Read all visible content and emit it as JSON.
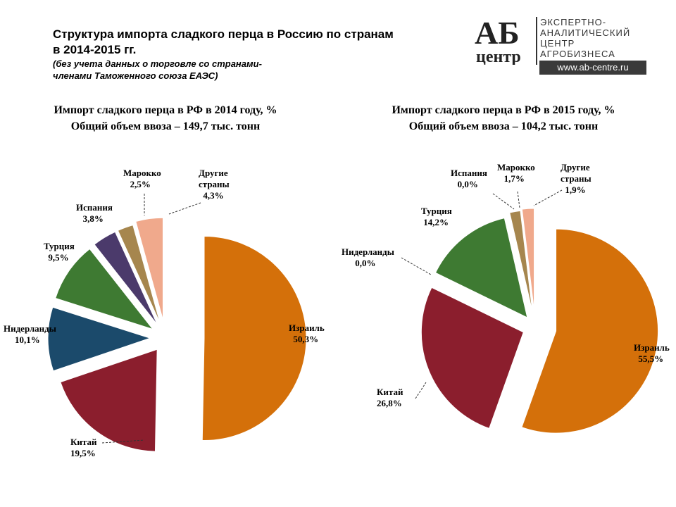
{
  "header": {
    "title_line1": "Структура импорта сладкого перца в Россию по странам",
    "title_line2": "в 2014-2015 гг.",
    "subtitle_line1": "(без учета данных о торговле со странами-",
    "subtitle_line2": "членами Таможенного союза ЕАЭС)"
  },
  "logo": {
    "mark_top": "АБ",
    "mark_bottom": "центр",
    "line1": "ЭКСПЕРТНО-",
    "line2": "АНАЛИТИЧЕСКИЙ",
    "line3": "ЦЕНТР",
    "line4": "АГРОБИЗНЕСА",
    "url": "www.ab-centre.ru"
  },
  "chart_data": [
    {
      "type": "pie",
      "title": "Импорт сладкого перца в РФ в 2014 году, %",
      "subtitle": "Общий объем ввоза – 149,7 тыс. тонн",
      "slices": [
        {
          "name": "Израиль",
          "value": 50.3,
          "label": "50,3%",
          "color": "#D4700A"
        },
        {
          "name": "Китай",
          "value": 19.5,
          "label": "19,5%",
          "color": "#8B1E2D"
        },
        {
          "name": "Нидерланды",
          "value": 10.1,
          "label": "10,1%",
          "color": "#1B4A6B"
        },
        {
          "name": "Турция",
          "value": 9.5,
          "label": "9,5%",
          "color": "#3E7A32"
        },
        {
          "name": "Испания",
          "value": 3.8,
          "label": "3,8%",
          "color": "#4B3A6B"
        },
        {
          "name": "Марокко",
          "value": 2.5,
          "label": "2,5%",
          "color": "#A6864E"
        },
        {
          "name": "Другие страны",
          "value": 4.3,
          "label": "4,3%",
          "color": "#F0A98C"
        }
      ]
    },
    {
      "type": "pie",
      "title": "Импорт сладкого перца в РФ в 2015 году, %",
      "subtitle": "Общий объем ввоза – 104,2 тыс. тонн",
      "slices": [
        {
          "name": "Израиль",
          "value": 55.5,
          "label": "55,5%",
          "color": "#D4700A"
        },
        {
          "name": "Китай",
          "value": 26.8,
          "label": "26,8%",
          "color": "#8B1E2D"
        },
        {
          "name": "Нидерланды",
          "value": 0.0,
          "label": "0,0%",
          "color": "#1B4A6B"
        },
        {
          "name": "Турция",
          "value": 14.2,
          "label": "14,2%",
          "color": "#3E7A32"
        },
        {
          "name": "Испания",
          "value": 0.0,
          "label": "0,0%",
          "color": "#4B3A6B"
        },
        {
          "name": "Марокко",
          "value": 1.7,
          "label": "1,7%",
          "color": "#A6864E"
        },
        {
          "name": "Другие страны",
          "value": 1.9,
          "label": "1,9%",
          "color": "#F0A98C"
        }
      ]
    }
  ]
}
